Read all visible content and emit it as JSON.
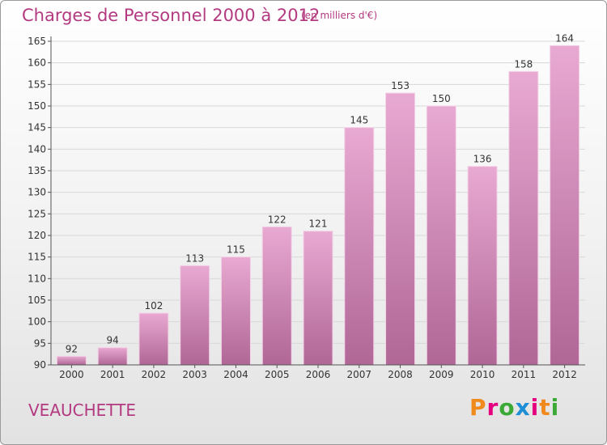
{
  "header": {
    "title": "Charges de Personnel 2000 à 2012",
    "subtitle": "(en milliers d'€)"
  },
  "footer": {
    "commune": "VEAUCHETTE",
    "logo_letters": [
      "P",
      "r",
      "o",
      "x",
      "i",
      "t",
      "i"
    ],
    "logo_colors": [
      "#f08a1c",
      "#e4007f",
      "#3aa935",
      "#1e8fd6",
      "#e4007f",
      "#f08a1c",
      "#3aa935"
    ]
  },
  "colors": {
    "title": "#b33a80",
    "bar_top": "#e8a9d2",
    "bar_bottom": "#b06796",
    "grid": "#d8d8d8",
    "axis": "#555555"
  },
  "chart_data": {
    "type": "bar",
    "title": "Charges de Personnel 2000 à 2012",
    "subtitle": "(en milliers d'€)",
    "categories": [
      "2000",
      "2001",
      "2002",
      "2003",
      "2004",
      "2005",
      "2006",
      "2007",
      "2008",
      "2009",
      "2010",
      "2011",
      "2012"
    ],
    "values": [
      92,
      94,
      102,
      113,
      115,
      122,
      121,
      145,
      153,
      150,
      136,
      158,
      164
    ],
    "ylim": [
      90,
      165
    ],
    "yticks": [
      90,
      95,
      100,
      105,
      110,
      115,
      120,
      125,
      130,
      135,
      140,
      145,
      150,
      155,
      160,
      165
    ],
    "grid": true,
    "data_labels": true
  }
}
